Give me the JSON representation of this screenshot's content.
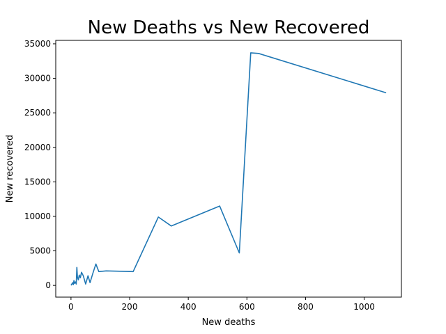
{
  "chart_data": {
    "type": "line",
    "title": "New Deaths vs New Recovered",
    "xlabel": "New deaths",
    "ylabel": "New recovered",
    "xlim": [
      -52,
      1127
    ],
    "ylim": [
      -1700,
      35500
    ],
    "xticks": [
      0,
      200,
      400,
      600,
      800,
      1000
    ],
    "yticks": [
      0,
      5000,
      10000,
      15000,
      20000,
      25000,
      30000,
      35000
    ],
    "grid": false,
    "legend": "none",
    "series": [
      {
        "color": "#1f77b4",
        "points": [
          [
            0,
            0
          ],
          [
            3,
            200
          ],
          [
            6,
            400
          ],
          [
            8,
            100
          ],
          [
            10,
            700
          ],
          [
            12,
            300
          ],
          [
            15,
            500
          ],
          [
            18,
            200
          ],
          [
            20,
            2600
          ],
          [
            22,
            1200
          ],
          [
            25,
            800
          ],
          [
            28,
            1500
          ],
          [
            32,
            1100
          ],
          [
            36,
            1900
          ],
          [
            42,
            1400
          ],
          [
            50,
            200
          ],
          [
            58,
            1400
          ],
          [
            65,
            400
          ],
          [
            75,
            1800
          ],
          [
            85,
            3100
          ],
          [
            95,
            2000
          ],
          [
            120,
            2100
          ],
          [
            212,
            2000
          ],
          [
            298,
            9900
          ],
          [
            342,
            8600
          ],
          [
            507,
            11500
          ],
          [
            574,
            4700
          ],
          [
            613,
            33700
          ],
          [
            640,
            33600
          ],
          [
            1075,
            27900
          ]
        ]
      }
    ]
  }
}
